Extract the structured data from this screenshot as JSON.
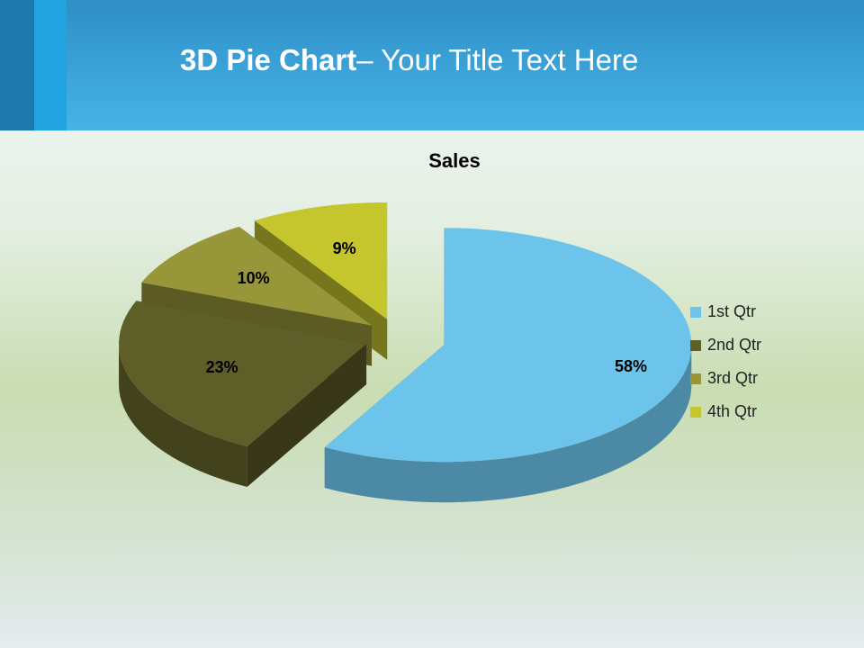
{
  "header": {
    "title_bold": "3D Pie Chart",
    "title_rest": "– Your Title Text Here"
  },
  "chart_data": {
    "type": "pie",
    "title": "Sales",
    "categories": [
      "1st Qtr",
      "2nd Qtr",
      "3rd Qtr",
      "4th Qtr"
    ],
    "values": [
      58,
      23,
      10,
      9
    ],
    "value_labels": [
      "58%",
      "23%",
      "10%",
      "9%"
    ],
    "colors": [
      "#6cc4ea",
      "#5e5e28",
      "#97973a",
      "#c5c52e"
    ],
    "legend": "right"
  }
}
